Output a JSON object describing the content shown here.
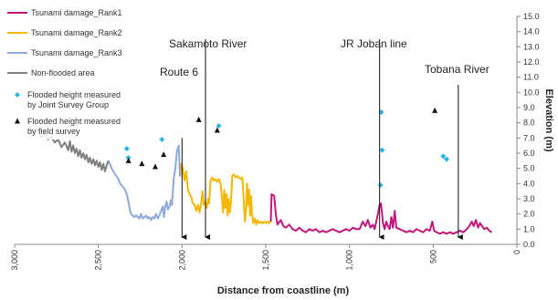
{
  "chart_data": {
    "type": "line",
    "xlabel": "Distance from coastline (m)",
    "ylabel": "Elevation (m)",
    "x_reversed": true,
    "xlim": [
      0,
      3000
    ],
    "ylim": [
      0,
      15
    ],
    "x_ticks": [
      "3,000",
      "2,500",
      "2,000",
      "1,500",
      "1,000",
      "500",
      "0"
    ],
    "x_tick_values": [
      3000,
      2500,
      2000,
      1500,
      1000,
      500,
      0
    ],
    "y_ticks": [
      "0.0",
      "1.0",
      "2.0",
      "3.0",
      "4.0",
      "5.0",
      "6.0",
      "7.0",
      "8.0",
      "9.0",
      "10.0",
      "11.0",
      "12.0",
      "13.0",
      "14.0",
      "15.0"
    ],
    "y_tick_values": [
      0,
      1,
      2,
      3,
      4,
      5,
      6,
      7,
      8,
      9,
      10,
      11,
      12,
      13,
      14,
      15
    ],
    "y_axis_side": "right",
    "grid": false,
    "legend_position": "top-left",
    "series": [
      {
        "name": "Tsunami damage_Rank1",
        "color": "#c0177a",
        "points": [
          [
            1470,
            1.5
          ],
          [
            1465,
            3.3
          ],
          [
            1450,
            3.2
          ],
          [
            1440,
            2.0
          ],
          [
            1430,
            1.3
          ],
          [
            1410,
            1.6
          ],
          [
            1395,
            1.2
          ],
          [
            1380,
            1.1
          ],
          [
            1360,
            1.3
          ],
          [
            1340,
            1.0
          ],
          [
            1320,
            0.9
          ],
          [
            1300,
            1.1
          ],
          [
            1280,
            0.9
          ],
          [
            1260,
            0.8
          ],
          [
            1240,
            1.0
          ],
          [
            1220,
            0.9
          ],
          [
            1200,
            1.0
          ],
          [
            1180,
            0.8
          ],
          [
            1160,
            0.9
          ],
          [
            1140,
            0.8
          ],
          [
            1120,
            0.9
          ],
          [
            1100,
            1.0
          ],
          [
            1080,
            0.9
          ],
          [
            1060,
            0.8
          ],
          [
            1040,
            0.9
          ],
          [
            1020,
            1.0
          ],
          [
            1000,
            0.9
          ],
          [
            980,
            1.1
          ],
          [
            960,
            1.0
          ],
          [
            940,
            1.0
          ],
          [
            920,
            1.5
          ],
          [
            905,
            1.2
          ],
          [
            890,
            1.6
          ],
          [
            875,
            1.1
          ],
          [
            860,
            1.3
          ],
          [
            850,
            1.0
          ],
          [
            840,
            1.5
          ],
          [
            830,
            2.0
          ],
          [
            820,
            2.6
          ],
          [
            812,
            2.7
          ],
          [
            805,
            2.0
          ],
          [
            800,
            1.4
          ],
          [
            790,
            1.0
          ],
          [
            780,
            1.5
          ],
          [
            770,
            1.2
          ],
          [
            760,
            1.0
          ],
          [
            750,
            1.8
          ],
          [
            740,
            1.1
          ],
          [
            730,
            2.2
          ],
          [
            720,
            1.1
          ],
          [
            700,
            1.0
          ],
          [
            680,
            0.9
          ],
          [
            660,
            0.8
          ],
          [
            640,
            0.9
          ],
          [
            620,
            0.8
          ],
          [
            600,
            1.0
          ],
          [
            580,
            0.9
          ],
          [
            560,
            0.8
          ],
          [
            540,
            1.0
          ],
          [
            520,
            0.9
          ],
          [
            505,
            1.5
          ],
          [
            495,
            0.9
          ],
          [
            480,
            0.8
          ],
          [
            460,
            0.7
          ],
          [
            440,
            0.8
          ],
          [
            420,
            0.7
          ],
          [
            400,
            0.8
          ],
          [
            380,
            0.7
          ],
          [
            360,
            0.8
          ],
          [
            340,
            0.9
          ],
          [
            320,
            0.8
          ],
          [
            300,
            1.0
          ],
          [
            285,
            1.2
          ],
          [
            270,
            1.5
          ],
          [
            258,
            1.2
          ],
          [
            245,
            1.6
          ],
          [
            232,
            1.1
          ],
          [
            220,
            1.4
          ],
          [
            208,
            1.2
          ],
          [
            195,
            1.0
          ],
          [
            180,
            1.1
          ],
          [
            165,
            0.9
          ],
          [
            150,
            0.8
          ]
        ]
      },
      {
        "name": "Tsunami damage_Rank2",
        "color": "#f5b800",
        "points": [
          [
            2010,
            4.5
          ],
          [
            2005,
            5.3
          ],
          [
            1995,
            5.0
          ],
          [
            1985,
            4.2
          ],
          [
            1975,
            4.8
          ],
          [
            1965,
            3.6
          ],
          [
            1955,
            3.3
          ],
          [
            1945,
            3.1
          ],
          [
            1935,
            2.7
          ],
          [
            1925,
            2.6
          ],
          [
            1915,
            2.2
          ],
          [
            1905,
            2.6
          ],
          [
            1895,
            2.1
          ],
          [
            1885,
            2.8
          ],
          [
            1878,
            3.5
          ],
          [
            1870,
            2.6
          ],
          [
            1862,
            2.8
          ],
          [
            1852,
            2.4
          ],
          [
            1845,
            3.0
          ],
          [
            1838,
            2.7
          ],
          [
            1830,
            4.2
          ],
          [
            1820,
            4.4
          ],
          [
            1810,
            4.2
          ],
          [
            1800,
            4.3
          ],
          [
            1790,
            4.1
          ],
          [
            1780,
            4.3
          ],
          [
            1770,
            4.0
          ],
          [
            1762,
            3.1
          ],
          [
            1755,
            2.1
          ],
          [
            1748,
            3.6
          ],
          [
            1742,
            2.4
          ],
          [
            1735,
            3.3
          ],
          [
            1728,
            1.9
          ],
          [
            1722,
            3.0
          ],
          [
            1715,
            2.1
          ],
          [
            1708,
            2.8
          ],
          [
            1700,
            4.5
          ],
          [
            1690,
            4.6
          ],
          [
            1680,
            4.4
          ],
          [
            1670,
            4.5
          ],
          [
            1660,
            4.4
          ],
          [
            1650,
            4.3
          ],
          [
            1640,
            4.4
          ],
          [
            1632,
            3.0
          ],
          [
            1625,
            1.5
          ],
          [
            1618,
            2.2
          ],
          [
            1612,
            4.0
          ],
          [
            1606,
            2.6
          ],
          [
            1600,
            3.6
          ],
          [
            1594,
            1.9
          ],
          [
            1588,
            3.2
          ],
          [
            1582,
            2.0
          ],
          [
            1575,
            1.4
          ],
          [
            1566,
            1.7
          ],
          [
            1558,
            1.3
          ],
          [
            1550,
            1.6
          ],
          [
            1540,
            1.4
          ],
          [
            1530,
            1.5
          ],
          [
            1520,
            1.4
          ],
          [
            1510,
            1.5
          ],
          [
            1500,
            1.4
          ],
          [
            1490,
            1.5
          ],
          [
            1480,
            1.4
          ],
          [
            1470,
            1.5
          ]
        ]
      },
      {
        "name": "Tsunami damage_Rank3",
        "color": "#8eaadb",
        "points": [
          [
            2440,
            5.5
          ],
          [
            2420,
            5.0
          ],
          [
            2400,
            4.6
          ],
          [
            2385,
            4.4
          ],
          [
            2370,
            4.0
          ],
          [
            2355,
            3.8
          ],
          [
            2340,
            3.6
          ],
          [
            2330,
            3.3
          ],
          [
            2320,
            2.8
          ],
          [
            2312,
            2.3
          ],
          [
            2305,
            2.0
          ],
          [
            2295,
            1.9
          ],
          [
            2285,
            1.8
          ],
          [
            2275,
            1.9
          ],
          [
            2265,
            1.8
          ],
          [
            2255,
            1.7
          ],
          [
            2245,
            2.0
          ],
          [
            2235,
            1.7
          ],
          [
            2225,
            1.8
          ],
          [
            2215,
            1.9
          ],
          [
            2205,
            1.7
          ],
          [
            2195,
            1.8
          ],
          [
            2185,
            1.6
          ],
          [
            2175,
            1.8
          ],
          [
            2165,
            1.7
          ],
          [
            2155,
            2.0
          ],
          [
            2145,
            1.7
          ],
          [
            2135,
            1.9
          ],
          [
            2125,
            2.2
          ],
          [
            2115,
            2.5
          ],
          [
            2108,
            1.8
          ],
          [
            2100,
            2.5
          ],
          [
            2092,
            2.8
          ],
          [
            2085,
            2.3
          ],
          [
            2075,
            2.5
          ],
          [
            2068,
            2.9
          ],
          [
            2060,
            2.6
          ],
          [
            2050,
            4.3
          ],
          [
            2040,
            5.0
          ],
          [
            2030,
            6.2
          ],
          [
            2020,
            6.5
          ],
          [
            2012,
            4.5
          ],
          [
            2010,
            4.5
          ]
        ]
      },
      {
        "name": "Non-flooded area",
        "color": "#7f7f7f",
        "points": [
          [
            2920,
            8.2
          ],
          [
            2900,
            7.4
          ],
          [
            2880,
            7.2
          ],
          [
            2860,
            7.6
          ],
          [
            2840,
            7.0
          ],
          [
            2820,
            7.4
          ],
          [
            2800,
            6.9
          ],
          [
            2780,
            7.1
          ],
          [
            2760,
            6.7
          ],
          [
            2740,
            6.9
          ],
          [
            2720,
            6.4
          ],
          [
            2700,
            6.7
          ],
          [
            2680,
            6.2
          ],
          [
            2670,
            6.8
          ],
          [
            2660,
            6.1
          ],
          [
            2650,
            6.5
          ],
          [
            2640,
            6.0
          ],
          [
            2630,
            6.3
          ],
          [
            2620,
            5.8
          ],
          [
            2610,
            6.2
          ],
          [
            2600,
            5.7
          ],
          [
            2590,
            6.0
          ],
          [
            2580,
            5.6
          ],
          [
            2570,
            5.9
          ],
          [
            2560,
            5.4
          ],
          [
            2550,
            5.7
          ],
          [
            2540,
            5.3
          ],
          [
            2530,
            5.6
          ],
          [
            2520,
            5.2
          ],
          [
            2510,
            5.5
          ],
          [
            2500,
            5.1
          ],
          [
            2490,
            5.4
          ],
          [
            2480,
            4.9
          ],
          [
            2470,
            5.3
          ],
          [
            2460,
            4.8
          ],
          [
            2450,
            5.2
          ],
          [
            2440,
            5.5
          ]
        ]
      }
    ],
    "scatter_series": [
      {
        "name": "Flooded height measured by Joint Survey Group",
        "color": "#2bb5e0",
        "marker": "diamond",
        "points": [
          [
            2330,
            6.3
          ],
          [
            2320,
            5.7
          ],
          [
            2120,
            6.9
          ],
          [
            1780,
            7.8
          ],
          [
            810,
            8.7
          ],
          [
            805,
            6.2
          ],
          [
            815,
            3.9
          ],
          [
            440,
            5.8
          ],
          [
            420,
            5.6
          ]
        ]
      },
      {
        "name": "Flooded height measured by field survey",
        "color": "#111111",
        "marker": "triangle",
        "points": [
          [
            2320,
            5.5
          ],
          [
            2240,
            5.3
          ],
          [
            2160,
            5.1
          ],
          [
            2110,
            5.9
          ],
          [
            1900,
            8.2
          ],
          [
            1790,
            7.5
          ],
          [
            490,
            8.8
          ]
        ]
      }
    ],
    "annotations": [
      {
        "label": "Route 6",
        "x": 2000,
        "y_top": 7.0,
        "y_bottom": 0
      },
      {
        "label": "Sakamoto River",
        "x": 1860,
        "y_top": 13.5,
        "y_bottom": 0
      },
      {
        "label": "JR Joban line",
        "x": 820,
        "y_top": 13.5,
        "y_bottom": 0
      },
      {
        "label": "Tobana River",
        "x": 350,
        "y_top": 10.5,
        "y_bottom": 0
      }
    ]
  }
}
